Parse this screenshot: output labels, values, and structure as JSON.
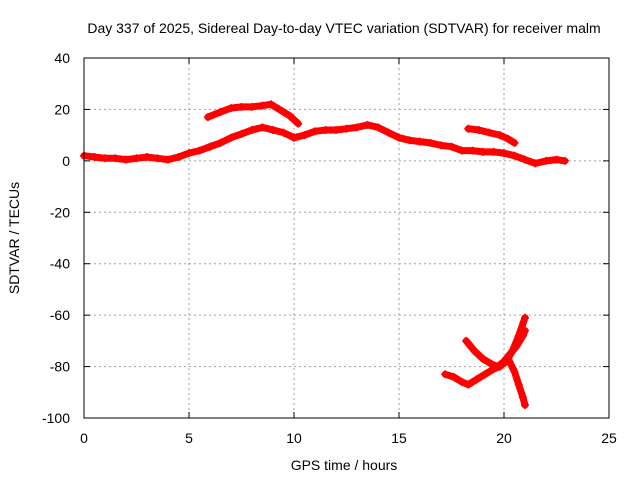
{
  "chart_data": {
    "type": "scatter",
    "title": "Day 337 of 2025, Sidereal Day-to-day VTEC variation (SDTVAR) for receiver malm",
    "xlabel": "GPS time / hours",
    "ylabel": "SDTVAR / TECUs",
    "xlim": [
      0,
      25
    ],
    "ylim": [
      -100,
      40
    ],
    "xticks": [
      "0",
      "5",
      "10",
      "15",
      "20",
      "25"
    ],
    "yticks": [
      "40",
      "20",
      "0",
      "-20",
      "-40",
      "-60",
      "-80",
      "-100"
    ],
    "grid": true,
    "marker": "plus",
    "color": "#ff0000",
    "series": [
      {
        "name": "main-trace",
        "x": [
          0,
          0.5,
          1,
          1.5,
          2,
          2.5,
          3,
          3.5,
          4,
          4.5,
          5,
          5.5,
          6,
          6.5,
          7,
          7.5,
          8,
          8.5,
          9,
          9.5,
          10,
          10.5,
          11,
          11.5,
          12,
          12.5,
          13,
          13.5,
          14,
          14.5,
          15,
          15.5,
          16,
          16.5,
          17,
          17.5,
          18,
          18.5,
          19,
          19.5,
          20,
          20.5,
          21,
          21.5,
          22,
          22.5,
          22.9
        ],
        "y": [
          2,
          1.5,
          1,
          1,
          0.5,
          1,
          1.5,
          1,
          0.5,
          1.5,
          3,
          4,
          5.5,
          7,
          9,
          10.5,
          12,
          13,
          12,
          11,
          9,
          10,
          11.5,
          12,
          12,
          12.5,
          13,
          14,
          13,
          11,
          9,
          8,
          7.5,
          7,
          6,
          5.5,
          4,
          4,
          3.5,
          3.5,
          3,
          2,
          0.5,
          -1,
          0,
          0.5,
          0
        ]
      },
      {
        "name": "upper-branch-1",
        "x": [
          5.9,
          6.5,
          7,
          7.5,
          8,
          8.5,
          8.9,
          9.3,
          9.8,
          10.2
        ],
        "y": [
          17,
          19,
          20.5,
          21,
          21,
          21.5,
          22,
          20,
          17.5,
          14.5
        ]
      },
      {
        "name": "upper-branch-2",
        "x": [
          18.3,
          18.8,
          19.3,
          19.8,
          20.2,
          20.5
        ],
        "y": [
          12.5,
          12,
          11,
          10,
          8.5,
          7
        ]
      },
      {
        "name": "lower-branch-1",
        "x": [
          17.2,
          17.6,
          18,
          18.3,
          18.7,
          19.1,
          19.5,
          19.8,
          20.1,
          20.4,
          20.7,
          21
        ],
        "y": [
          -83,
          -84,
          -86,
          -87,
          -85,
          -83,
          -81,
          -80,
          -78,
          -74,
          -68,
          -61
        ]
      },
      {
        "name": "lower-branch-2",
        "x": [
          18.2,
          18.6,
          19,
          19.4,
          19.7,
          20,
          20.3,
          20.6,
          20.9,
          21
        ],
        "y": [
          -70,
          -74,
          -77,
          -79,
          -80,
          -78,
          -75,
          -72,
          -68,
          -66
        ]
      },
      {
        "name": "lower-branch-3",
        "x": [
          20.2,
          20.5,
          20.7,
          20.9,
          21
        ],
        "y": [
          -77,
          -82,
          -87,
          -92,
          -95
        ]
      }
    ]
  }
}
